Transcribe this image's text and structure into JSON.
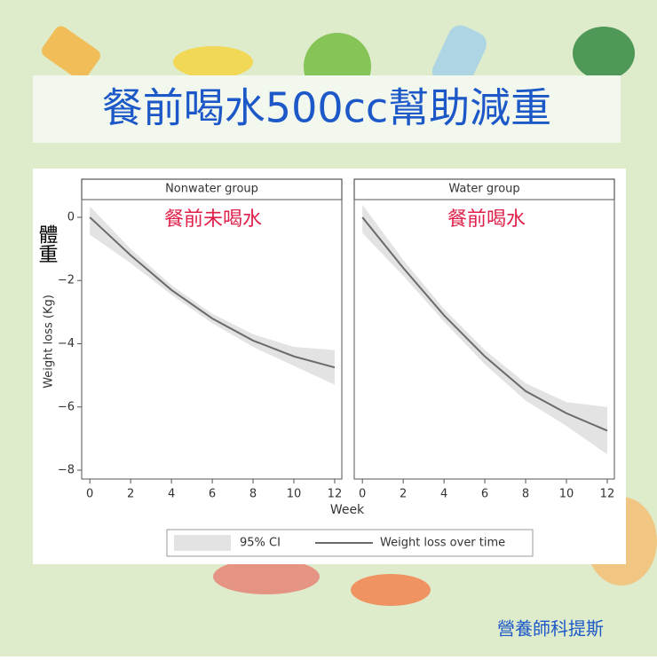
{
  "header": {
    "title": "餐前喝水500cc幫助減重"
  },
  "side_label": "體重",
  "footer": "營養師科提斯",
  "figure": {
    "xlabel": "Week",
    "ylabel": "Weight loss (Kg)",
    "legend": {
      "band": "95% CI",
      "line": "Weight loss over time"
    }
  },
  "chart_data": [
    {
      "type": "line",
      "title": "Nonwater group",
      "annotation": "餐前未喝水",
      "x": [
        0,
        2,
        4,
        6,
        8,
        10,
        12
      ],
      "values": [
        0,
        -1.2,
        -2.3,
        -3.2,
        -3.9,
        -4.4,
        -4.75
      ],
      "ci_upper": [
        0.35,
        -1.0,
        -2.15,
        -3.05,
        -3.7,
        -4.1,
        -4.2
      ],
      "ci_lower": [
        -0.55,
        -1.45,
        -2.45,
        -3.35,
        -4.1,
        -4.7,
        -5.3
      ],
      "color": "#6b6b6b",
      "band_color": "#e3e3e3",
      "xlim": [
        -0.4,
        12.35
      ],
      "ylim": [
        -8.28,
        0.56
      ],
      "xticks": [
        0,
        2,
        4,
        6,
        8,
        10,
        12
      ],
      "yticks": [
        0,
        {
          "value": -2,
          "label": "−2"
        },
        {
          "value": -4,
          "label": "−4"
        },
        {
          "value": -6,
          "label": "−6"
        },
        {
          "value": -8,
          "label": "−8"
        }
      ]
    },
    {
      "type": "line",
      "title": "Water group",
      "annotation": "餐前喝水",
      "x": [
        0,
        2,
        4,
        6,
        8,
        10,
        12
      ],
      "values": [
        0,
        -1.6,
        -3.1,
        -4.4,
        -5.5,
        -6.2,
        -6.75
      ],
      "ci_upper": [
        0.4,
        -1.35,
        -2.9,
        -4.2,
        -5.25,
        -5.85,
        -6.0
      ],
      "ci_lower": [
        -0.5,
        -1.85,
        -3.3,
        -4.65,
        -5.8,
        -6.6,
        -7.5
      ],
      "color": "#6b6b6b",
      "band_color": "#e3e3e3",
      "xlim": [
        -0.4,
        12.35
      ],
      "ylim": [
        -8.28,
        0.56
      ],
      "xticks": [
        0,
        2,
        4,
        6,
        8,
        10,
        12
      ]
    }
  ]
}
